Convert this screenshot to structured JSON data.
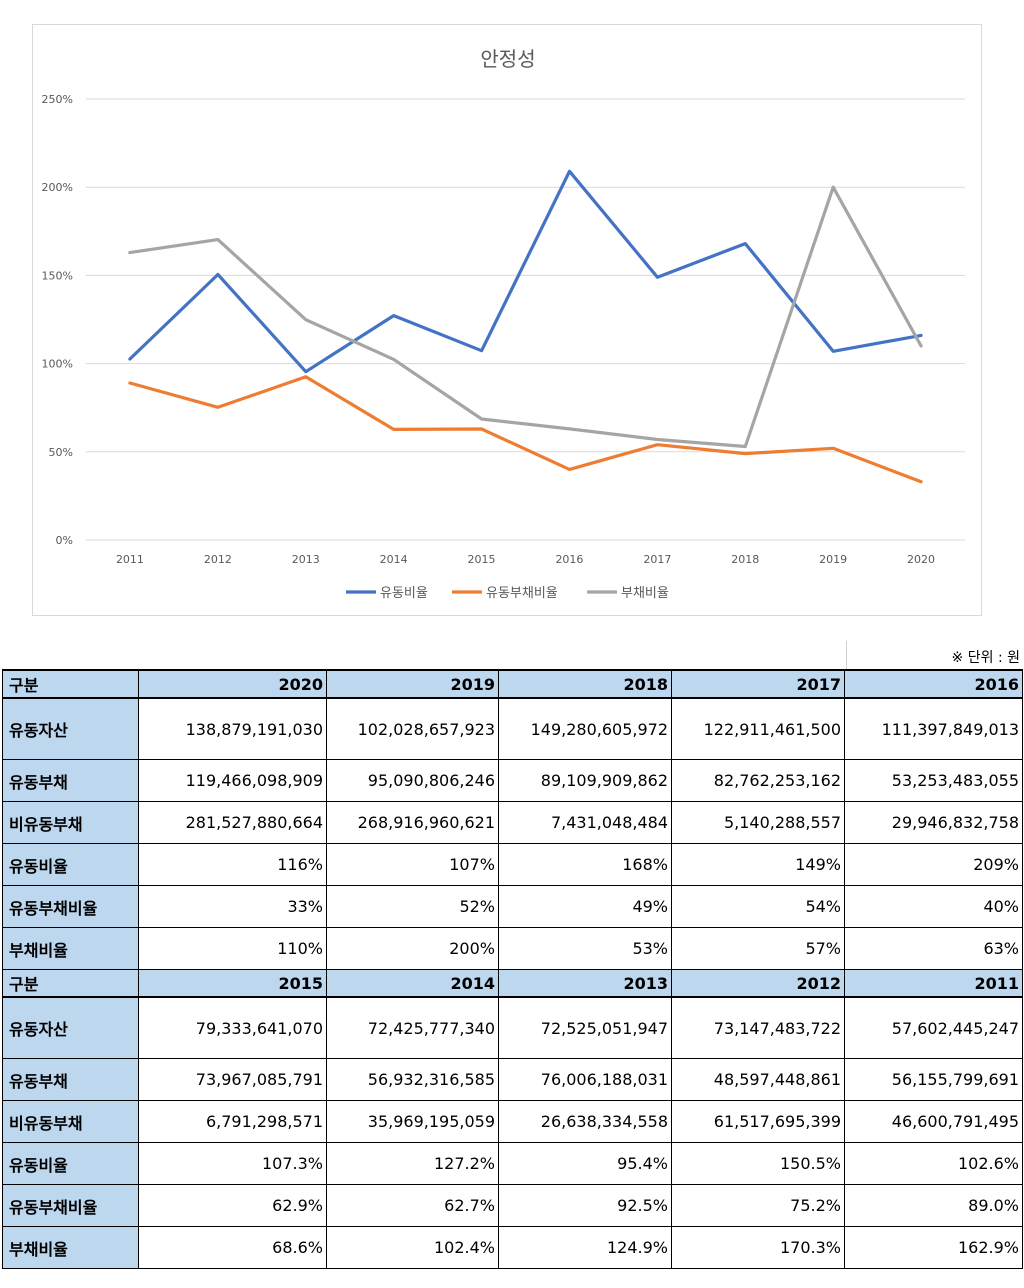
{
  "chart_data": {
    "type": "line",
    "title": "안정성",
    "categories": [
      "2011",
      "2012",
      "2013",
      "2014",
      "2015",
      "2016",
      "2017",
      "2018",
      "2019",
      "2020"
    ],
    "series": [
      {
        "name": "유동비율",
        "color": "#4472c4",
        "values": [
          102.6,
          150.5,
          95.4,
          127.2,
          107.3,
          209,
          149,
          168,
          107,
          116
        ]
      },
      {
        "name": "유동부채비율",
        "color": "#ed7d31",
        "values": [
          89.0,
          75.2,
          92.5,
          62.7,
          62.9,
          40,
          54,
          49,
          52,
          33
        ]
      },
      {
        "name": "부채비율",
        "color": "#a5a5a5",
        "values": [
          162.9,
          170.3,
          124.9,
          102.4,
          68.6,
          63,
          57,
          53,
          200,
          110
        ]
      }
    ],
    "y_ticks": [
      "0%",
      "50%",
      "100%",
      "150%",
      "200%",
      "250%"
    ],
    "ylim": [
      0,
      250
    ],
    "grid": true,
    "legend": "bottom"
  },
  "table": {
    "unit_note": "※ 단위 : 원",
    "sections": [
      {
        "header_label": "구분",
        "years": [
          "2020",
          "2019",
          "2018",
          "2017",
          "2016"
        ],
        "rows": [
          {
            "label": "유동자산",
            "values": [
              "138,879,191,030",
              "102,028,657,923",
              "149,280,605,972",
              "122,911,461,500",
              "111,397,849,013"
            ]
          },
          {
            "label": "유동부채",
            "values": [
              "119,466,098,909",
              "95,090,806,246",
              "89,109,909,862",
              "82,762,253,162",
              "53,253,483,055"
            ]
          },
          {
            "label": "비유동부채",
            "values": [
              "281,527,880,664",
              "268,916,960,621",
              "7,431,048,484",
              "5,140,288,557",
              "29,946,832,758"
            ]
          },
          {
            "label": "유동비율",
            "values": [
              "116%",
              "107%",
              "168%",
              "149%",
              "209%"
            ]
          },
          {
            "label": "유동부채비율",
            "values": [
              "33%",
              "52%",
              "49%",
              "54%",
              "40%"
            ]
          },
          {
            "label": "부채비율",
            "values": [
              "110%",
              "200%",
              "53%",
              "57%",
              "63%"
            ]
          }
        ]
      },
      {
        "header_label": "구분",
        "years": [
          "2015",
          "2014",
          "2013",
          "2012",
          "2011"
        ],
        "rows": [
          {
            "label": "유동자산",
            "values": [
              "79,333,641,070",
              "72,425,777,340",
              "72,525,051,947",
              "73,147,483,722",
              "57,602,445,247"
            ]
          },
          {
            "label": "유동부채",
            "values": [
              "73,967,085,791",
              "56,932,316,585",
              "76,006,188,031",
              "48,597,448,861",
              "56,155,799,691"
            ]
          },
          {
            "label": "비유동부채",
            "values": [
              "6,791,298,571",
              "35,969,195,059",
              "26,638,334,558",
              "61,517,695,399",
              "46,600,791,495"
            ]
          },
          {
            "label": "유동비율",
            "values": [
              "107.3%",
              "127.2%",
              "95.4%",
              "150.5%",
              "102.6%"
            ]
          },
          {
            "label": "유동부채비율",
            "values": [
              "62.9%",
              "62.7%",
              "92.5%",
              "75.2%",
              "89.0%"
            ]
          },
          {
            "label": "부채비율",
            "values": [
              "68.6%",
              "102.4%",
              "124.9%",
              "170.3%",
              "162.9%"
            ]
          }
        ]
      }
    ]
  }
}
